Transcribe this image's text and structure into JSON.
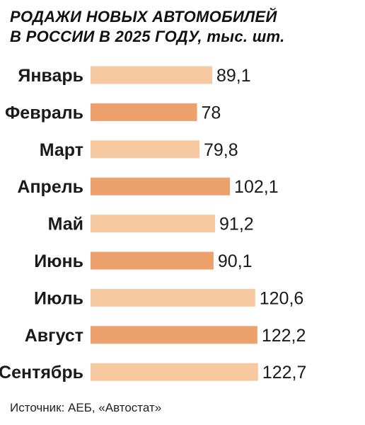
{
  "title_line1": "РОДАЖИ НОВЫХ АВТОМОБИЛЕЙ",
  "title_line2": "В РОССИИ В 2025 ГОДУ,",
  "title_unit": "тыс. шт.",
  "source": "Источник: АЕБ, «Автостат»",
  "colors": {
    "light": "#f6c9a1",
    "dark": "#eca06c"
  },
  "chart_data": {
    "type": "bar",
    "orientation": "horizontal",
    "categories": [
      "Январь",
      "Февраль",
      "Март",
      "Апрель",
      "Май",
      "Июнь",
      "Июль",
      "Август",
      "Сентябрь"
    ],
    "values": [
      89.1,
      78,
      79.8,
      102.1,
      91.2,
      90.1,
      120.6,
      122.2,
      122.7
    ],
    "value_labels": [
      "89,1",
      "78",
      "79,8",
      "102,1",
      "91,2",
      "90,1",
      "120,6",
      "122,2",
      "122,7"
    ],
    "bar_colors": [
      "light",
      "dark",
      "light",
      "dark",
      "light",
      "dark",
      "light",
      "dark",
      "light"
    ],
    "grid": false
  }
}
